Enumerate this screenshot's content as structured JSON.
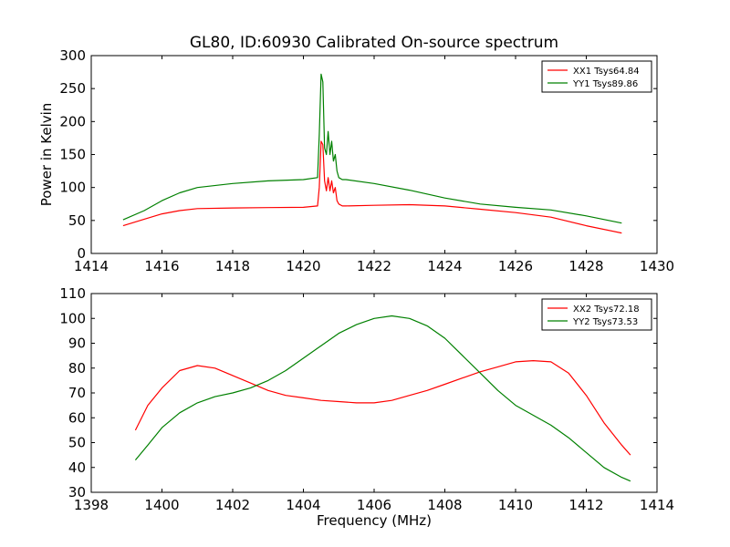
{
  "figure": {
    "title": "GL80, ID:60930 Calibrated On-source spectrum"
  },
  "chart_data": [
    {
      "type": "line",
      "title": "GL80, ID:60930 Calibrated On-source spectrum",
      "xlabel": "",
      "ylabel": "Power in Kelvin",
      "xlim": [
        1414,
        1430
      ],
      "ylim": [
        0,
        300
      ],
      "xticks": [
        1414,
        1416,
        1418,
        1420,
        1422,
        1424,
        1426,
        1428,
        1430
      ],
      "yticks": [
        0,
        50,
        100,
        150,
        200,
        250,
        300
      ],
      "xtick_labels": [
        "1414",
        "1416",
        "1418",
        "1420",
        "1422",
        "1424",
        "1426",
        "1428",
        "1430"
      ],
      "ytick_labels": [
        "0",
        "50",
        "100",
        "150",
        "200",
        "250",
        "300"
      ],
      "grid": false,
      "legend_position": "top-right",
      "series": [
        {
          "name": "XX1 Tsys64.84",
          "color": "#ff0000",
          "x": [
            1414.9,
            1415.5,
            1416,
            1416.5,
            1417,
            1418,
            1419,
            1420,
            1420.4,
            1420.45,
            1420.5,
            1420.55,
            1420.6,
            1420.65,
            1420.7,
            1420.75,
            1420.8,
            1420.85,
            1420.9,
            1420.95,
            1421.0,
            1421.1,
            1421.2,
            1422,
            1423,
            1424,
            1425,
            1426,
            1427,
            1428,
            1429
          ],
          "y": [
            42,
            52,
            60,
            65,
            68,
            69,
            69.5,
            70,
            72,
            100,
            170,
            165,
            110,
            95,
            115,
            95,
            110,
            92,
            100,
            80,
            75,
            72,
            72,
            73,
            74,
            72,
            67,
            62,
            55,
            42,
            31
          ]
        },
        {
          "name": "YY1 Tsys89.86",
          "color": "#008000",
          "x": [
            1414.9,
            1415.5,
            1416,
            1416.5,
            1417,
            1418,
            1419,
            1420,
            1420.4,
            1420.45,
            1420.5,
            1420.55,
            1420.6,
            1420.65,
            1420.7,
            1420.75,
            1420.8,
            1420.85,
            1420.9,
            1420.95,
            1421.0,
            1421.1,
            1421.2,
            1422,
            1423,
            1424,
            1425,
            1426,
            1427,
            1428,
            1429
          ],
          "y": [
            51,
            65,
            80,
            92,
            100,
            106,
            110,
            112,
            115,
            180,
            272,
            260,
            160,
            150,
            185,
            150,
            170,
            140,
            150,
            125,
            115,
            112,
            112,
            106,
            96,
            84,
            75,
            70,
            66,
            57,
            46
          ]
        }
      ]
    },
    {
      "type": "line",
      "title": "",
      "xlabel": "Frequency (MHz)",
      "ylabel": "",
      "xlim": [
        1398,
        1414
      ],
      "ylim": [
        30,
        110
      ],
      "xticks": [
        1398,
        1400,
        1402,
        1404,
        1406,
        1408,
        1410,
        1412,
        1414
      ],
      "yticks": [
        30,
        40,
        50,
        60,
        70,
        80,
        90,
        100,
        110
      ],
      "xtick_labels": [
        "1398",
        "1400",
        "1402",
        "1404",
        "1406",
        "1408",
        "1410",
        "1412",
        "1414"
      ],
      "ytick_labels": [
        "30",
        "40",
        "50",
        "60",
        "70",
        "80",
        "90",
        "100",
        "110"
      ],
      "grid": false,
      "legend_position": "top-right",
      "series": [
        {
          "name": "XX2 Tsys72.18",
          "color": "#ff0000",
          "x": [
            1399.25,
            1399.6,
            1400,
            1400.5,
            1401,
            1401.5,
            1402,
            1402.5,
            1403,
            1403.5,
            1404,
            1404.5,
            1405,
            1405.5,
            1406,
            1406.5,
            1407,
            1407.5,
            1408,
            1408.5,
            1409,
            1409.5,
            1410,
            1410.5,
            1411,
            1411.5,
            1412,
            1412.5,
            1413,
            1413.25
          ],
          "y": [
            55,
            65,
            72,
            79,
            81,
            80,
            77,
            74,
            71,
            69,
            68,
            67,
            66.5,
            66,
            66,
            67,
            69,
            71,
            73.5,
            76,
            78.5,
            80.5,
            82.5,
            83,
            82.5,
            78,
            69,
            58,
            49,
            45
          ]
        },
        {
          "name": "YY2 Tsys73.53",
          "color": "#008000",
          "x": [
            1399.25,
            1399.6,
            1400,
            1400.5,
            1401,
            1401.5,
            1402,
            1402.5,
            1403,
            1403.5,
            1404,
            1404.5,
            1405,
            1405.5,
            1406,
            1406.5,
            1407,
            1407.5,
            1408,
            1408.5,
            1409,
            1409.5,
            1410,
            1410.5,
            1411,
            1411.5,
            1412,
            1412.5,
            1413,
            1413.25
          ],
          "y": [
            43,
            49,
            56,
            62,
            66,
            68.5,
            70,
            72,
            75,
            79,
            84,
            89,
            94,
            97.5,
            100,
            101,
            100,
            97,
            92,
            85,
            78,
            71,
            65,
            61,
            57,
            52,
            46,
            40,
            36,
            34.5
          ]
        }
      ]
    }
  ]
}
